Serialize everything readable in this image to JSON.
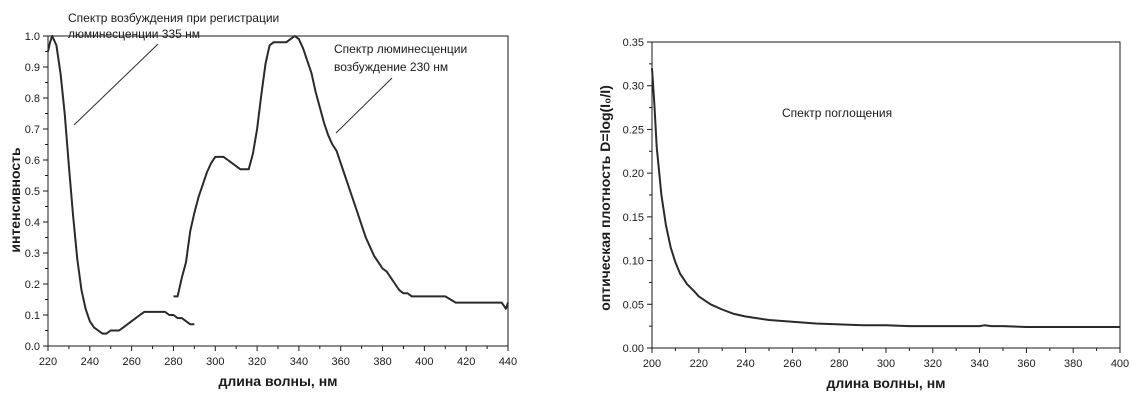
{
  "chart_data": [
    {
      "type": "line",
      "xlabel": "длина волны, нм",
      "ylabel": "интенсивность",
      "xlim": [
        220,
        440
      ],
      "ylim": [
        0.0,
        1.0
      ],
      "xticks": [
        "220",
        "240",
        "260",
        "280",
        "300",
        "320",
        "340",
        "360",
        "380",
        "400",
        "420",
        "440"
      ],
      "yticks": [
        "0.0",
        "0.1",
        "0.2",
        "0.3",
        "0.4",
        "0.5",
        "0.6",
        "0.7",
        "0.8",
        "0.9",
        "1.0"
      ],
      "annotations": [
        {
          "lines": [
            "Спектр возбуждения при регистрации",
            "люминесценции 335 нм"
          ]
        },
        {
          "lines": [
            "Спектр люминесценции",
            "возбуждение 230 нм"
          ]
        }
      ],
      "series": [
        {
          "x": [
            220,
            221,
            222,
            224,
            226,
            228,
            230,
            232,
            234,
            236,
            238,
            240,
            242,
            244,
            246,
            248,
            250,
            254,
            256,
            258,
            260,
            262,
            264,
            266,
            268,
            270,
            272,
            274,
            276,
            278,
            280,
            282,
            284,
            286,
            288,
            290
          ],
          "y": [
            0.95,
            0.98,
            1.0,
            0.97,
            0.88,
            0.75,
            0.58,
            0.42,
            0.28,
            0.18,
            0.12,
            0.08,
            0.06,
            0.05,
            0.04,
            0.04,
            0.05,
            0.05,
            0.06,
            0.07,
            0.08,
            0.09,
            0.1,
            0.11,
            0.11,
            0.11,
            0.11,
            0.11,
            0.11,
            0.1,
            0.1,
            0.09,
            0.09,
            0.08,
            0.07,
            0.07
          ]
        },
        {
          "x": [
            280,
            282,
            284,
            286,
            288,
            290,
            292,
            294,
            296,
            298,
            300,
            302,
            304,
            306,
            308,
            310,
            312,
            314,
            316,
            318,
            320,
            322,
            324,
            326,
            328,
            330,
            332,
            334,
            336,
            338,
            340,
            342,
            344,
            346,
            348,
            350,
            352,
            354,
            356,
            358,
            360,
            362,
            364,
            366,
            368,
            370,
            372,
            374,
            376,
            378,
            380,
            382,
            384,
            386,
            388,
            390,
            392,
            394,
            396,
            398,
            400,
            405,
            410,
            415,
            420,
            425,
            430,
            435,
            437,
            439,
            440
          ],
          "y": [
            0.16,
            0.16,
            0.22,
            0.27,
            0.37,
            0.43,
            0.48,
            0.52,
            0.56,
            0.59,
            0.61,
            0.61,
            0.61,
            0.6,
            0.59,
            0.58,
            0.57,
            0.57,
            0.57,
            0.62,
            0.7,
            0.81,
            0.91,
            0.97,
            0.98,
            0.98,
            0.98,
            0.98,
            0.99,
            1.0,
            0.99,
            0.96,
            0.92,
            0.88,
            0.82,
            0.77,
            0.72,
            0.68,
            0.65,
            0.63,
            0.59,
            0.55,
            0.51,
            0.47,
            0.43,
            0.39,
            0.35,
            0.32,
            0.29,
            0.27,
            0.25,
            0.24,
            0.22,
            0.2,
            0.18,
            0.17,
            0.17,
            0.16,
            0.16,
            0.16,
            0.16,
            0.16,
            0.16,
            0.14,
            0.14,
            0.14,
            0.14,
            0.14,
            0.14,
            0.12,
            0.14
          ]
        }
      ]
    },
    {
      "type": "line",
      "xlabel": "длина волны, нм",
      "ylabel": "оптическая плотность D=log(I₀/I)",
      "xlim": [
        200,
        400
      ],
      "ylim": [
        0.0,
        0.35
      ],
      "xticks": [
        "200",
        "220",
        "240",
        "260",
        "280",
        "300",
        "320",
        "340",
        "360",
        "380",
        "400"
      ],
      "yticks": [
        "0.00",
        "0.05",
        "0.10",
        "0.15",
        "0.20",
        "0.25",
        "0.30",
        "0.35"
      ],
      "annotations": [
        {
          "lines": [
            "Спектр поглощения"
          ]
        }
      ],
      "series": [
        {
          "x": [
            200,
            201,
            202,
            204,
            206,
            208,
            210,
            212,
            215,
            218,
            220,
            225,
            230,
            235,
            240,
            245,
            250,
            260,
            270,
            280,
            290,
            300,
            310,
            320,
            330,
            340,
            342,
            345,
            350,
            360,
            370,
            380,
            390,
            400
          ],
          "y": [
            0.32,
            0.28,
            0.23,
            0.175,
            0.14,
            0.115,
            0.098,
            0.085,
            0.073,
            0.065,
            0.059,
            0.05,
            0.044,
            0.039,
            0.036,
            0.034,
            0.032,
            0.03,
            0.028,
            0.027,
            0.026,
            0.026,
            0.025,
            0.025,
            0.025,
            0.025,
            0.026,
            0.025,
            0.025,
            0.024,
            0.024,
            0.024,
            0.024,
            0.024
          ]
        }
      ]
    }
  ]
}
